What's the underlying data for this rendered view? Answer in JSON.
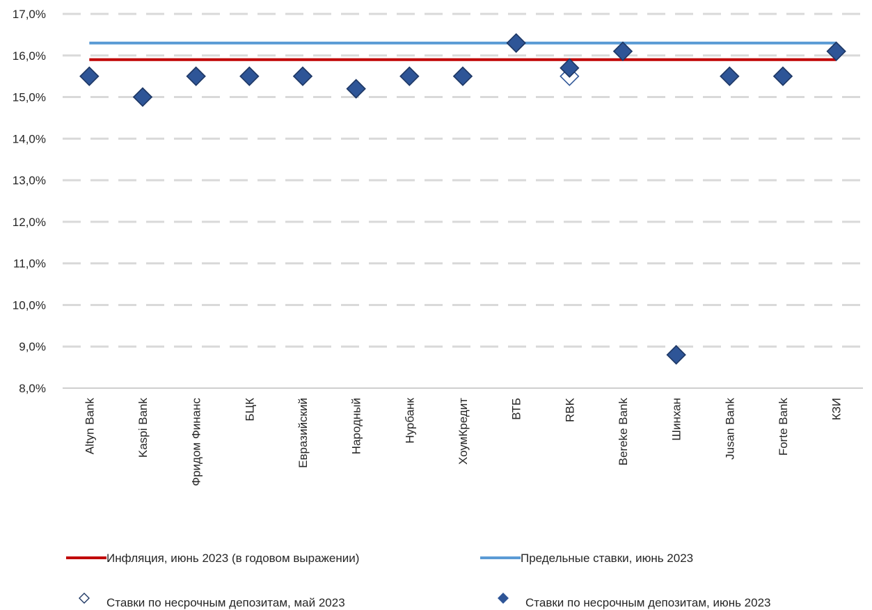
{
  "chart_data": {
    "type": "scatter",
    "categories": [
      "Altyn Bank",
      "Kaspi Bank",
      "Фридом Финанс",
      "БЦК",
      "Евразийский",
      "Народный",
      "Нурбанк",
      "ХоумКредит",
      "ВТБ",
      "RBK",
      "Bereke Bank",
      "Шинхан",
      "Jusan Bank",
      "Forte Bank",
      "КЗИ"
    ],
    "ylim": [
      8.0,
      17.0
    ],
    "y_ticks": [
      "8,0%",
      "9,0%",
      "10,0%",
      "11,0%",
      "12,0%",
      "13,0%",
      "14,0%",
      "15,0%",
      "16,0%",
      "17,0%"
    ],
    "grid": "horizontal dashed",
    "legend_position": "bottom",
    "series": [
      {
        "name": "Инфляция, июнь 2023 (в годовом выражении)",
        "kind": "line",
        "color": "#c00000",
        "values": [
          15.9,
          15.9,
          15.9,
          15.9,
          15.9,
          15.9,
          15.9,
          15.9,
          15.9,
          15.9,
          15.9,
          15.9,
          15.9,
          15.9,
          15.9
        ]
      },
      {
        "name": "Предельные ставки, июнь 2023",
        "kind": "line",
        "color": "#5b9bd5",
        "values": [
          16.3,
          16.3,
          16.3,
          16.3,
          16.3,
          16.3,
          16.3,
          16.3,
          16.3,
          16.3,
          16.3,
          16.3,
          16.3,
          16.3,
          16.3
        ]
      },
      {
        "name": "Ставки по несрочным депозитам, май 2023",
        "kind": "marker-hollow",
        "color": "#2e5597",
        "values": [
          15.5,
          15.0,
          15.5,
          15.5,
          15.5,
          15.2,
          15.5,
          15.5,
          16.3,
          15.5,
          16.1,
          8.8,
          15.5,
          15.5,
          16.1
        ]
      },
      {
        "name": "Ставки по несрочным депозитам, июнь 2023",
        "kind": "marker-filled",
        "color": "#2e5597",
        "values": [
          15.5,
          15.0,
          15.5,
          15.5,
          15.5,
          15.2,
          15.5,
          15.5,
          16.3,
          15.7,
          16.1,
          8.8,
          15.5,
          15.5,
          16.1
        ]
      }
    ]
  }
}
